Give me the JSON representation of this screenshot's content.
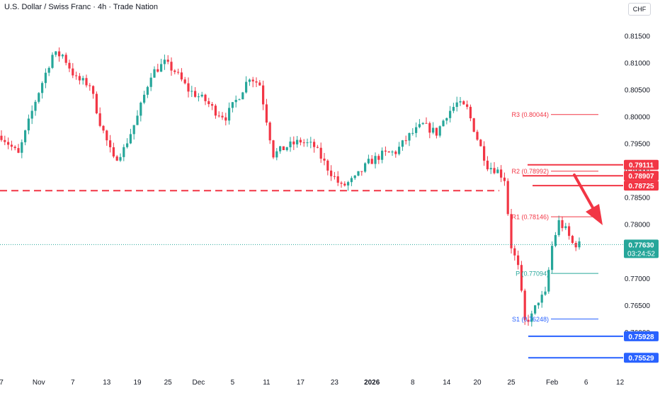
{
  "header": {
    "title": "U.S. Dollar / Swiss Franc · 4h · Trade Nation",
    "currency_label": "CHF"
  },
  "colors": {
    "up": "#26a69a",
    "down": "#f23645",
    "resistance": "#f23645",
    "support": "#2962ff",
    "pivot": "#26a69a",
    "text": "#131722",
    "axis": "#5d606b",
    "bg": "#ffffff"
  },
  "chart_data": {
    "type": "candlestick",
    "title": "U.S. Dollar / Swiss Franc · 4h · Trade Nation",
    "xlabel": "",
    "ylabel": "CHF",
    "ylim": [
      0.7523,
      0.8188
    ],
    "y_ticks": [
      0.815,
      0.81,
      0.805,
      0.8,
      0.795,
      0.79,
      0.785,
      0.78,
      0.775,
      0.77,
      0.765,
      0.76
    ],
    "x_ticks": [
      "7",
      "Nov",
      "7",
      "13",
      "19",
      "25",
      "Dec",
      "5",
      "11",
      "17",
      "23",
      "2026",
      "8",
      "14",
      "20",
      "25",
      "Feb",
      "6",
      "12"
    ],
    "x_tick_index": [
      0,
      11,
      21,
      31,
      40,
      49,
      58,
      68,
      78,
      88,
      98,
      109,
      121,
      131,
      140,
      150,
      162,
      172,
      182
    ],
    "close_series_keyframes": [
      [
        0,
        0.7965
      ],
      [
        5,
        0.793
      ],
      [
        10,
        0.803
      ],
      [
        15,
        0.8115
      ],
      [
        18,
        0.8115
      ],
      [
        22,
        0.807
      ],
      [
        26,
        0.806
      ],
      [
        29,
        0.799
      ],
      [
        33,
        0.792
      ],
      [
        36,
        0.794
      ],
      [
        40,
        0.8
      ],
      [
        44,
        0.808
      ],
      [
        48,
        0.81
      ],
      [
        51,
        0.8085
      ],
      [
        55,
        0.805
      ],
      [
        60,
        0.803
      ],
      [
        63,
        0.801
      ],
      [
        66,
        0.8
      ],
      [
        70,
        0.804
      ],
      [
        73,
        0.8075
      ],
      [
        76,
        0.806
      ],
      [
        80,
        0.793
      ],
      [
        84,
        0.7945
      ],
      [
        88,
        0.7955
      ],
      [
        92,
        0.7945
      ],
      [
        96,
        0.7905
      ],
      [
        100,
        0.787
      ],
      [
        104,
        0.7885
      ],
      [
        108,
        0.7915
      ],
      [
        112,
        0.793
      ],
      [
        116,
        0.7935
      ],
      [
        120,
        0.7965
      ],
      [
        124,
        0.7985
      ],
      [
        128,
        0.797
      ],
      [
        131,
        0.8005
      ],
      [
        134,
        0.8025
      ],
      [
        137,
        0.8015
      ],
      [
        140,
        0.796
      ],
      [
        143,
        0.791
      ],
      [
        146,
        0.79
      ],
      [
        148,
        0.7885
      ],
      [
        150,
        0.776
      ],
      [
        152,
        0.772
      ],
      [
        154,
        0.762
      ],
      [
        156,
        0.763
      ],
      [
        158,
        0.766
      ],
      [
        160,
        0.767
      ],
      [
        162,
        0.776
      ],
      [
        164,
        0.7805
      ],
      [
        166,
        0.779
      ],
      [
        168,
        0.7765
      ],
      [
        170,
        0.7763
      ]
    ],
    "series": [
      {
        "name": "Resistance 0.79111",
        "value": 0.79111,
        "color": "#f23645",
        "label": "0.79111"
      },
      {
        "name": "Resistance 0.78907",
        "value": 0.78907,
        "color": "#f23645",
        "label": "0.78907"
      },
      {
        "name": "Resistance 0.78725",
        "value": 0.78725,
        "color": "#f23645",
        "label": "0.78725"
      },
      {
        "name": "Support 0.75928",
        "value": 0.75928,
        "color": "#2962ff",
        "label": "0.75928"
      },
      {
        "name": "Support 0.75529",
        "value": 0.75529,
        "color": "#2962ff",
        "label": "0.75529"
      }
    ],
    "pivots": [
      {
        "label": "R3 (0.80044)",
        "value": 0.80044,
        "color": "#f23645"
      },
      {
        "label": "R2 (0.78992)",
        "value": 0.78992,
        "color": "#f23645"
      },
      {
        "label": "R1 (0.78146)",
        "value": 0.78146,
        "color": "#f23645"
      },
      {
        "label": "P (0.77094)",
        "value": 0.77094,
        "color": "#26a69a"
      },
      {
        "label": "S1 (0.76248)",
        "value": 0.76248,
        "color": "#2962ff"
      }
    ],
    "dashed_level": 0.7863,
    "current_price": {
      "value": 0.7763,
      "label": "0.77630",
      "countdown": "03:24:52"
    }
  }
}
